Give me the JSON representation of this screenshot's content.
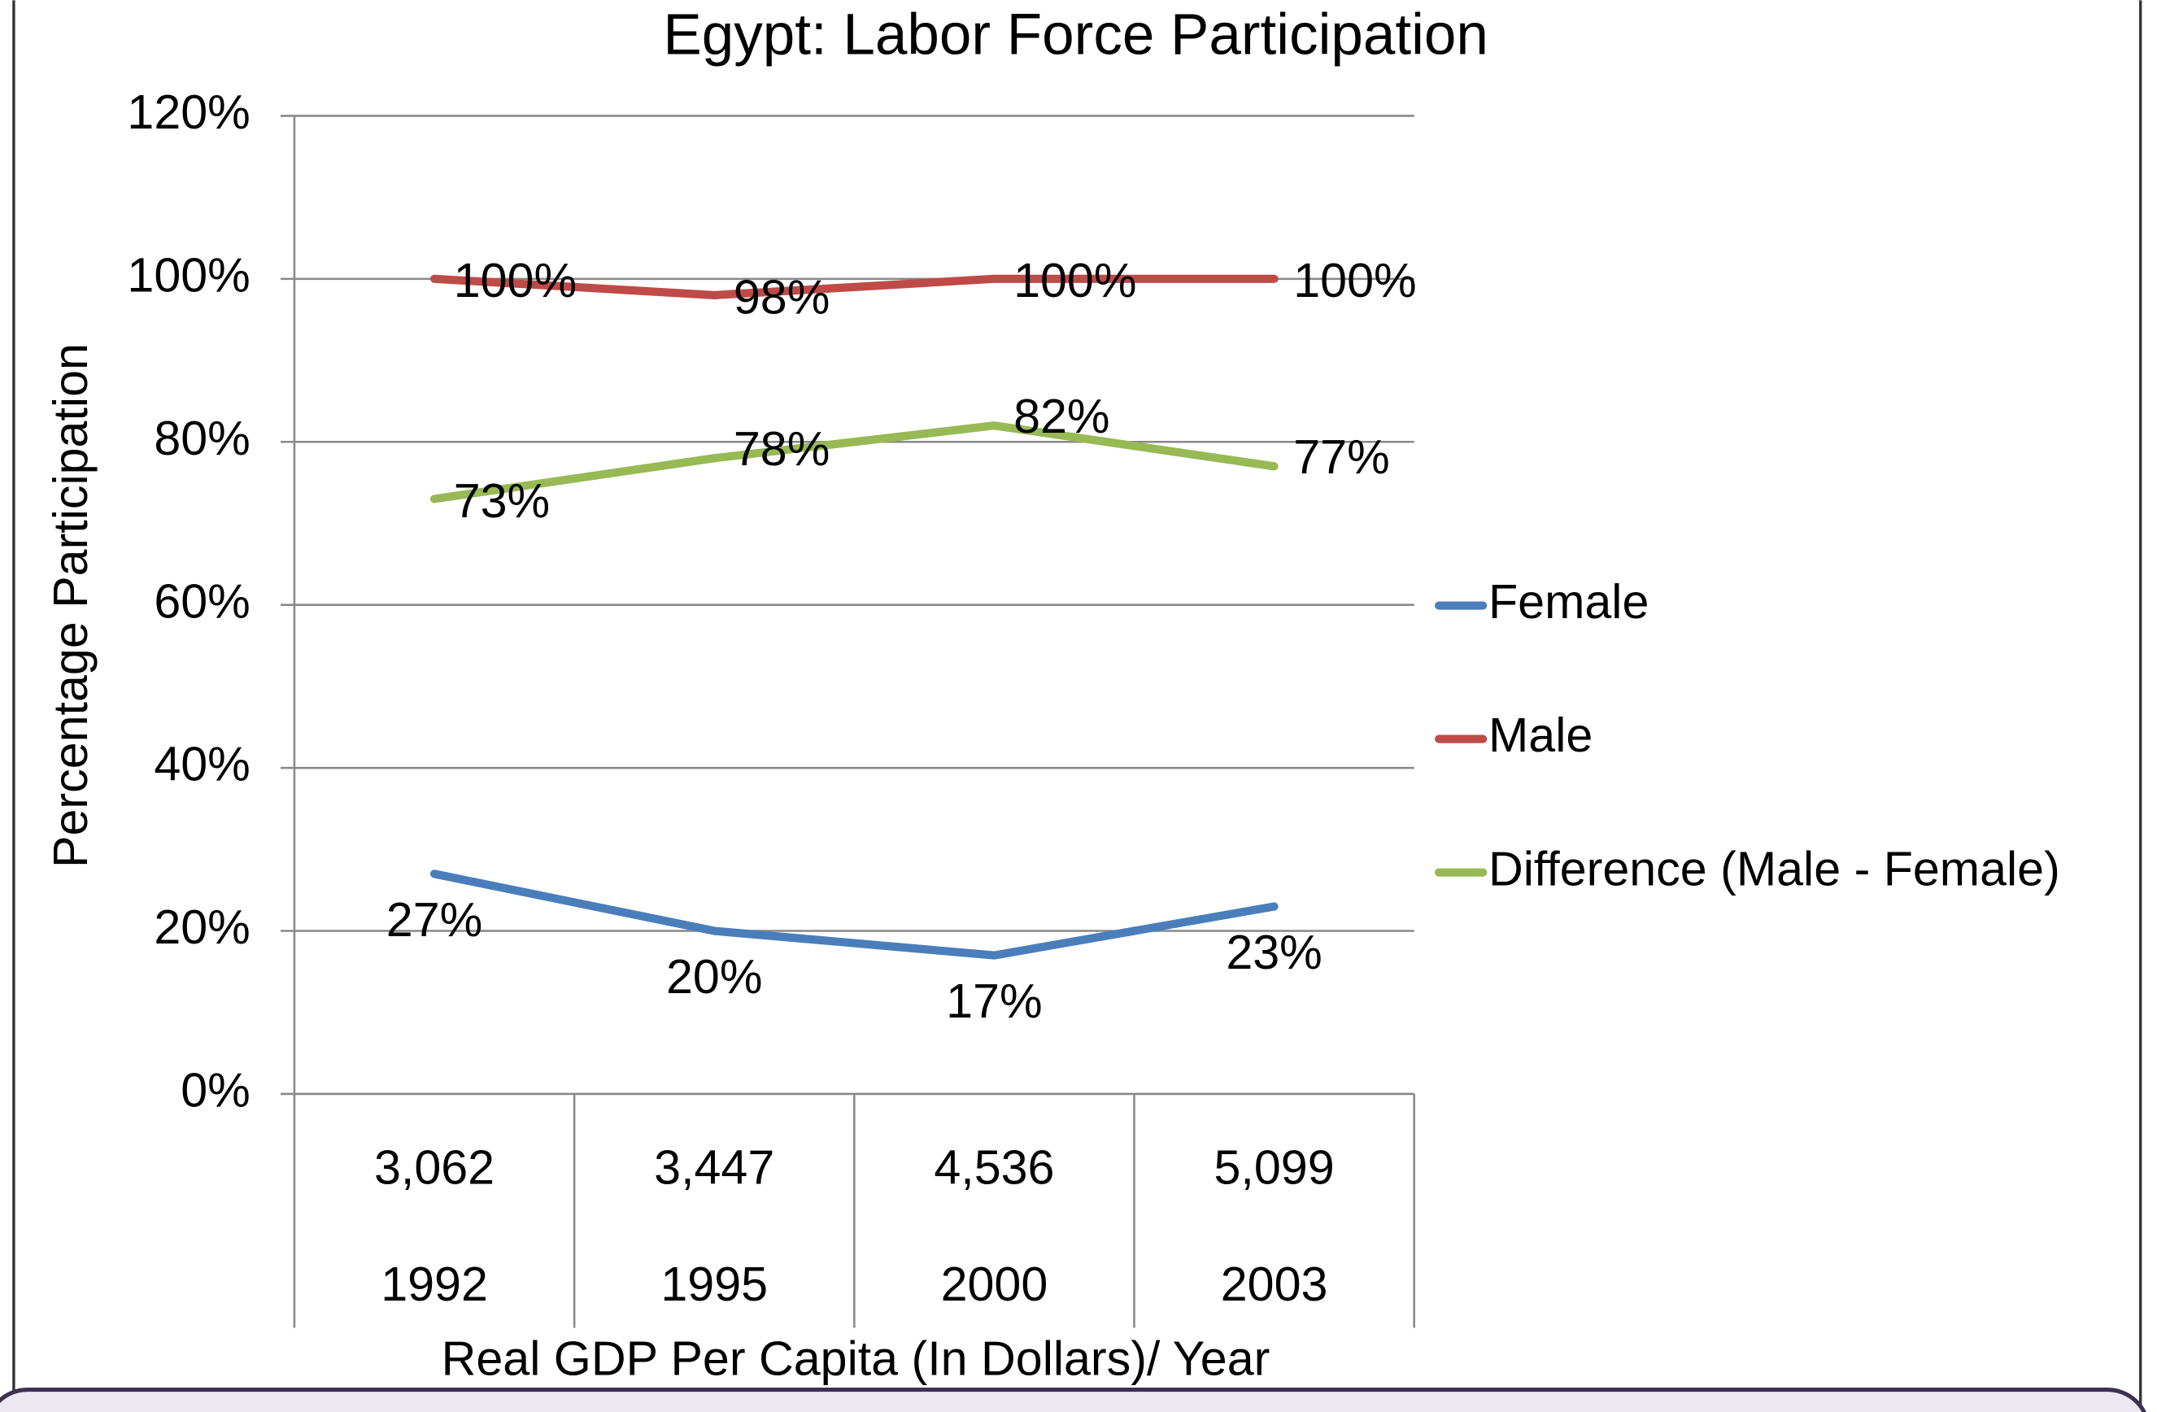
{
  "chart_data": {
    "type": "line",
    "title": "Egypt: Labor Force Participation",
    "y_label": "Percentage Participation",
    "x_label": "Real GDP Per Capita (In Dollars)/ Year",
    "categories": [
      "3,062",
      "3,447",
      "4,536",
      "5,099"
    ],
    "category_years": [
      "1992",
      "1995",
      "2000",
      "2003"
    ],
    "series": [
      {
        "name": "Female",
        "color": "#4a7ebb",
        "values": [
          27,
          20,
          17,
          23
        ],
        "value_labels": [
          "27%",
          "20%",
          "17%",
          "23%"
        ]
      },
      {
        "name": "Male",
        "color": "#be4b48",
        "values": [
          100,
          98,
          100,
          100
        ],
        "value_labels": [
          "100%",
          "98%",
          "100%",
          "100%"
        ]
      },
      {
        "name": "Difference (Male - Female)",
        "color": "#98b954",
        "values": [
          73,
          78,
          82,
          77
        ],
        "value_labels": [
          "73%",
          "78%",
          "82%",
          "77%"
        ]
      }
    ],
    "ylim": [
      0,
      120
    ],
    "yticks": [
      {
        "value": 0,
        "label": "0%"
      },
      {
        "value": 20,
        "label": "20%"
      },
      {
        "value": 40,
        "label": "40%"
      },
      {
        "value": 60,
        "label": "60%"
      },
      {
        "value": 80,
        "label": "80%"
      },
      {
        "value": 100,
        "label": "100%"
      },
      {
        "value": 120,
        "label": "120%"
      }
    ],
    "grid": true,
    "legend": "right"
  }
}
